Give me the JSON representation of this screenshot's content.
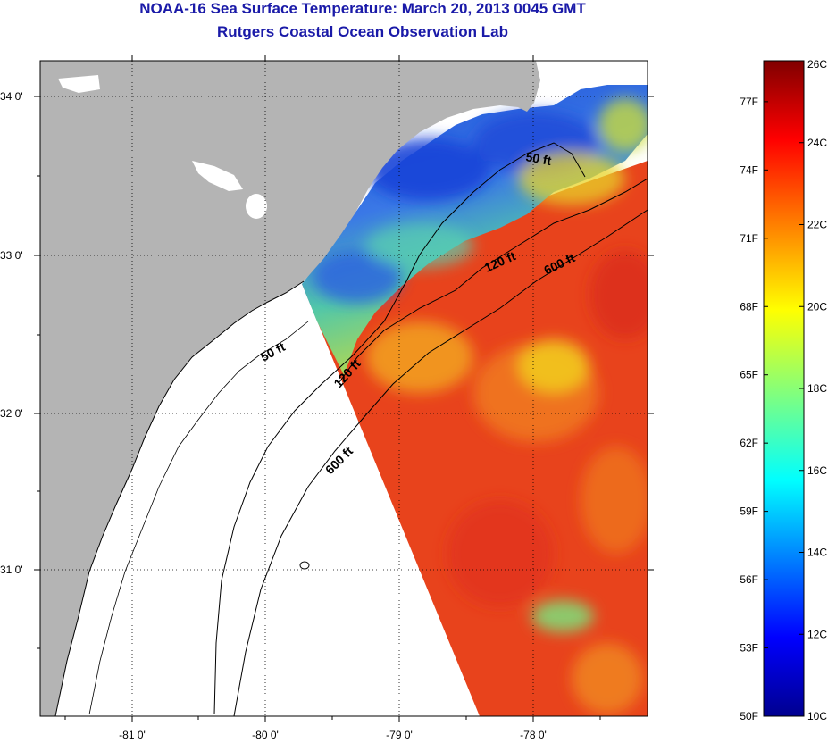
{
  "title": "NOAA-16 Sea Surface Temperature:  March 20, 2013 0045 GMT",
  "subtitle": "Rutgers Coastal Ocean Observation Lab",
  "map": {
    "lat_labels": [
      "34 0'",
      "33 0'",
      "32 0'",
      "31 0'"
    ],
    "lon_labels": [
      "-81 0'",
      "-80 0'",
      "-79 0'",
      "-78 0'"
    ],
    "contour_labels": {
      "c50_north": "50 ft",
      "c120_north": "120 ft",
      "c600_north": "600 ft",
      "c50_south": "50 ft",
      "c120_south": "120 ft",
      "c600_south": "600 ft"
    },
    "colors": {
      "land": "#b4b4b4",
      "no_data": "#ffffff",
      "cold": "#1e50e0",
      "mid": "#f0e020",
      "warm": "#e6401e"
    }
  },
  "colorbar": {
    "fahrenheit_labels": [
      "77F",
      "74F",
      "71F",
      "68F",
      "65F",
      "62F",
      "59F",
      "56F",
      "53F",
      "50F"
    ],
    "celsius_labels": [
      "26C",
      "24C",
      "22C",
      "20C",
      "18C",
      "16C",
      "14C",
      "12C",
      "10C"
    ],
    "range_c": [
      10,
      26
    ],
    "range_f": [
      50,
      78.8
    ],
    "colormap": "jet"
  }
}
